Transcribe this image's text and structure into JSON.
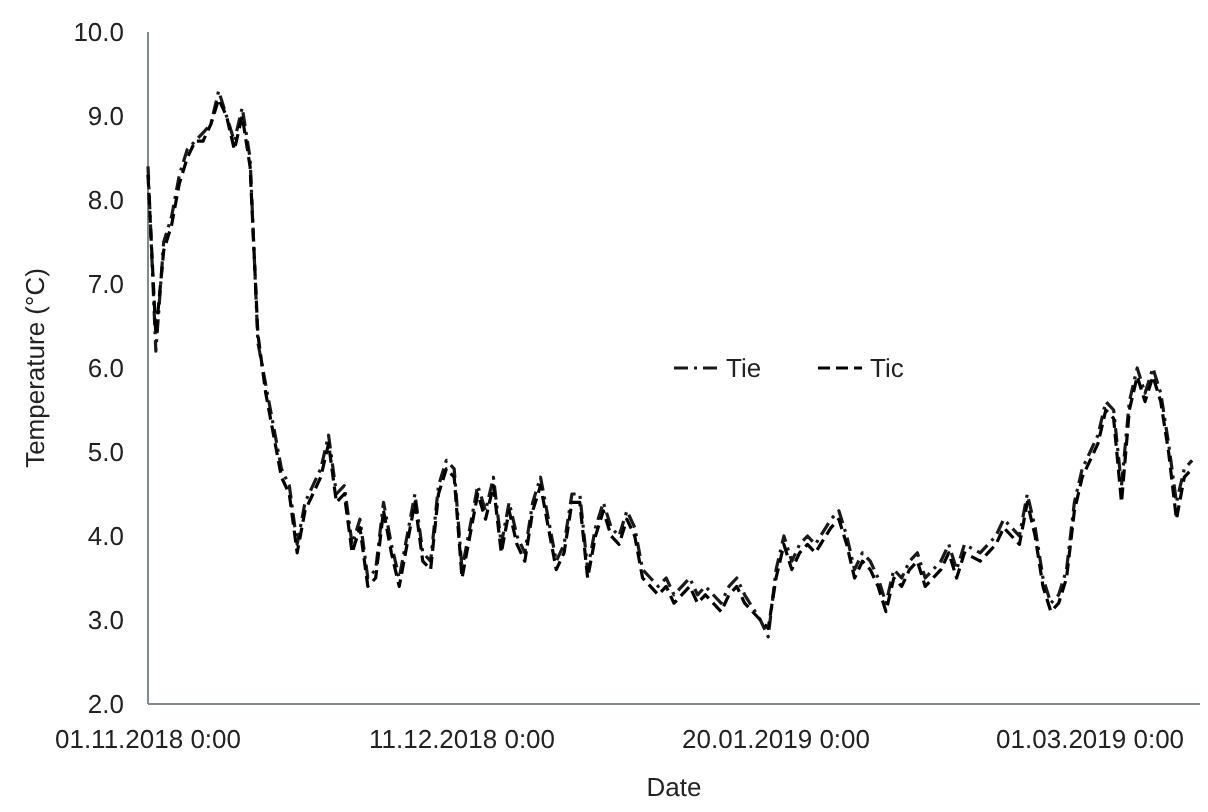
{
  "chart_data": {
    "type": "line",
    "xlabel": "Date",
    "ylabel": "Temperature (°C)",
    "x": [
      "2018-11-01",
      "2018-11-02",
      "2018-11-03",
      "2018-11-04",
      "2018-11-05",
      "2018-11-06",
      "2018-11-07",
      "2018-11-08",
      "2018-11-09",
      "2018-11-10",
      "2018-11-11",
      "2018-11-12",
      "2018-11-13",
      "2018-11-14",
      "2018-11-15",
      "2018-11-16",
      "2018-11-17",
      "2018-11-18",
      "2018-11-19",
      "2018-11-20",
      "2018-11-21",
      "2018-11-23",
      "2018-11-24",
      "2018-11-25",
      "2018-11-26",
      "2018-11-27",
      "2018-11-28",
      "2018-11-29",
      "2018-11-30",
      "2018-12-01",
      "2018-12-02",
      "2018-12-03",
      "2018-12-04",
      "2018-12-05",
      "2018-12-06",
      "2018-12-07",
      "2018-12-08",
      "2018-12-09",
      "2018-12-10",
      "2018-12-11",
      "2018-12-12",
      "2018-12-13",
      "2018-12-14",
      "2018-12-15",
      "2018-12-16",
      "2018-12-17",
      "2018-12-18",
      "2018-12-19",
      "2018-12-20",
      "2018-12-21",
      "2018-12-22",
      "2018-12-23",
      "2018-12-24",
      "2018-12-25",
      "2018-12-26",
      "2018-12-27",
      "2018-12-28",
      "2018-12-29",
      "2018-12-30",
      "2018-12-31",
      "2019-01-01",
      "2019-01-02",
      "2019-01-03",
      "2019-01-04",
      "2019-01-05",
      "2019-01-06",
      "2019-01-07",
      "2019-01-09",
      "2019-01-10",
      "2019-01-11",
      "2019-01-13",
      "2019-01-14",
      "2019-01-15",
      "2019-01-16",
      "2019-01-18",
      "2019-01-19",
      "2019-01-20",
      "2019-01-21",
      "2019-01-22",
      "2019-01-23",
      "2019-01-24",
      "2019-01-25",
      "2019-01-27",
      "2019-01-28",
      "2019-01-29",
      "2019-01-30",
      "2019-01-31",
      "2019-02-01",
      "2019-02-02",
      "2019-02-03",
      "2019-02-04",
      "2019-02-05",
      "2019-02-06",
      "2019-02-07",
      "2019-02-08",
      "2019-02-10",
      "2019-02-11",
      "2019-02-12",
      "2019-02-13",
      "2019-02-15",
      "2019-02-16",
      "2019-02-17",
      "2019-02-18",
      "2019-02-20",
      "2019-02-21",
      "2019-02-22",
      "2019-02-23",
      "2019-02-24",
      "2019-02-25",
      "2019-02-26",
      "2019-02-27",
      "2019-02-28",
      "2019-03-01",
      "2019-03-02",
      "2019-03-03",
      "2019-03-04",
      "2019-03-05",
      "2019-03-06",
      "2019-03-07",
      "2019-03-08",
      "2019-03-09",
      "2019-03-10",
      "2019-03-11",
      "2019-03-12",
      "2019-03-13",
      "2019-03-14"
    ],
    "series": [
      {
        "name": "Tie",
        "color": "#1a1a1a",
        "line_style": "dashdot",
        "values": [
          8.4,
          6.2,
          7.5,
          7.8,
          8.3,
          8.6,
          8.7,
          8.8,
          8.9,
          9.3,
          9.0,
          8.7,
          9.1,
          8.5,
          6.3,
          5.8,
          5.3,
          4.8,
          4.6,
          3.9,
          4.4,
          4.8,
          5.2,
          4.5,
          4.6,
          3.9,
          4.2,
          3.5,
          3.6,
          4.4,
          3.9,
          3.5,
          4.0,
          4.5,
          3.8,
          3.7,
          4.6,
          4.9,
          4.8,
          3.6,
          4.1,
          4.6,
          4.3,
          4.7,
          3.9,
          4.4,
          4.0,
          3.8,
          4.4,
          4.7,
          4.2,
          3.7,
          3.9,
          4.5,
          4.5,
          3.6,
          4.1,
          4.4,
          4.1,
          4.0,
          4.3,
          4.1,
          3.6,
          3.5,
          3.4,
          3.5,
          3.3,
          3.5,
          3.3,
          3.4,
          3.2,
          3.4,
          3.5,
          3.3,
          3.0,
          2.8,
          3.6,
          4.0,
          3.7,
          3.9,
          4.0,
          3.9,
          4.2,
          4.3,
          4.0,
          3.6,
          3.8,
          3.7,
          3.5,
          3.2,
          3.6,
          3.5,
          3.7,
          3.8,
          3.5,
          3.7,
          3.9,
          3.6,
          3.9,
          3.8,
          3.9,
          4.0,
          4.2,
          4.0,
          4.5,
          4.1,
          3.5,
          3.2,
          3.3,
          3.6,
          4.4,
          4.8,
          5.0,
          5.2,
          5.6,
          5.5,
          4.6,
          5.6,
          6.0,
          5.7,
          6.0,
          5.7,
          5.1,
          4.4,
          4.8,
          4.9
        ]
      },
      {
        "name": "Tic",
        "color": "#000000",
        "line_style": "dashed",
        "values": [
          8.3,
          6.4,
          7.4,
          7.7,
          8.2,
          8.5,
          8.7,
          8.7,
          8.9,
          9.2,
          9.0,
          8.6,
          9.0,
          8.4,
          6.4,
          5.7,
          5.2,
          4.7,
          4.5,
          3.8,
          4.3,
          4.7,
          5.1,
          4.4,
          4.5,
          3.8,
          4.1,
          3.4,
          3.5,
          4.3,
          3.8,
          3.4,
          3.9,
          4.4,
          3.7,
          3.6,
          4.5,
          4.8,
          4.7,
          3.5,
          4.0,
          4.5,
          4.2,
          4.6,
          3.8,
          4.3,
          3.9,
          3.7,
          4.3,
          4.6,
          4.1,
          3.6,
          3.8,
          4.4,
          4.4,
          3.5,
          4.0,
          4.3,
          4.0,
          3.9,
          4.2,
          4.0,
          3.5,
          3.4,
          3.3,
          3.4,
          3.2,
          3.4,
          3.2,
          3.3,
          3.1,
          3.3,
          3.4,
          3.2,
          3.0,
          2.9,
          3.5,
          3.9,
          3.6,
          3.8,
          3.9,
          3.8,
          4.1,
          4.2,
          3.9,
          3.5,
          3.7,
          3.6,
          3.4,
          3.1,
          3.5,
          3.4,
          3.6,
          3.7,
          3.4,
          3.6,
          3.8,
          3.5,
          3.8,
          3.7,
          3.8,
          3.9,
          4.1,
          3.9,
          4.4,
          4.0,
          3.4,
          3.1,
          3.2,
          3.5,
          4.3,
          4.7,
          4.9,
          5.1,
          5.5,
          5.4,
          4.4,
          5.5,
          5.9,
          5.6,
          5.9,
          5.6,
          5.0,
          4.2,
          4.7,
          4.8
        ]
      }
    ],
    "xlim": [
      "2018-11-01",
      "2019-03-15"
    ],
    "xticks": [
      {
        "value": "2018-11-01",
        "label": "01.11.2018 0:00"
      },
      {
        "value": "2018-12-11",
        "label": "11.12.2018 0:00"
      },
      {
        "value": "2019-01-20",
        "label": "20.01.2019 0:00"
      },
      {
        "value": "2019-03-01",
        "label": "01.03.2019 0:00"
      }
    ],
    "ylim": [
      2,
      10
    ],
    "yticks": [
      {
        "value": 2,
        "label": "2.0"
      },
      {
        "value": 3,
        "label": "3.0"
      },
      {
        "value": 4,
        "label": "4.0"
      },
      {
        "value": 5,
        "label": "5.0"
      },
      {
        "value": 6,
        "label": "6.0"
      },
      {
        "value": 7,
        "label": "7.0"
      },
      {
        "value": 8,
        "label": "8.0"
      },
      {
        "value": 9,
        "label": "9.0"
      },
      {
        "value": 10,
        "label": "10.0"
      }
    ],
    "grid": false,
    "legend": "right"
  }
}
